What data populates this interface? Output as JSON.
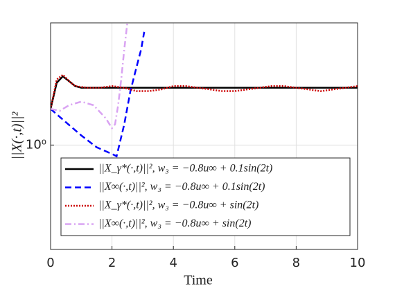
{
  "chart_data": {
    "type": "line",
    "xlabel": "Time",
    "ylabel": "||X(·,t)||²",
    "xlim": [
      0,
      10
    ],
    "xticks": [
      0,
      2,
      4,
      6,
      8,
      10
    ],
    "ylim": [
      0.62,
      1.75
    ],
    "yticks": [
      {
        "value": 1,
        "label": "10⁰"
      }
    ],
    "log_y": true,
    "grid": true,
    "legend": "lower right",
    "series": [
      {
        "name": "||X_γ*(·,t)||², w₃ = −0.8u∞ + 0.1sin(2t)",
        "color": "#000000",
        "dash": "solid",
        "x": [
          0,
          0.2,
          0.4,
          0.6,
          0.8,
          1,
          1.5,
          2,
          3,
          4,
          5,
          6,
          7,
          8,
          9,
          10
        ],
        "values": [
          1.18,
          1.33,
          1.37,
          1.34,
          1.31,
          1.3,
          1.3,
          1.3,
          1.3,
          1.3,
          1.3,
          1.3,
          1.3,
          1.3,
          1.3,
          1.3
        ]
      },
      {
        "name": "||X∞(·,t)||², w₃ = −0.8u∞ + 0.1sin(2t)",
        "color": "#0000ff",
        "dash": "dashed",
        "x": [
          0,
          0.5,
          1,
          1.5,
          2,
          2.15,
          2.4,
          2.6,
          2.8,
          2.95,
          3.05
        ],
        "values": [
          1.18,
          1.11,
          1.045,
          0.99,
          0.96,
          0.95,
          1.1,
          1.28,
          1.43,
          1.55,
          1.68
        ]
      },
      {
        "name": "||X_γ*(·,t)||², w₃ = −0.8u∞ + sin(2t)",
        "color": "#cc0000",
        "dash": "dotted",
        "x": [
          0,
          0.2,
          0.4,
          0.6,
          0.8,
          1.2,
          1.6,
          2,
          2.4,
          2.8,
          3.2,
          3.6,
          4,
          4.4,
          4.8,
          5.2,
          5.6,
          6,
          6.4,
          6.8,
          7.2,
          7.6,
          8,
          8.4,
          8.8,
          9.2,
          9.6,
          10
        ],
        "values": [
          1.18,
          1.35,
          1.38,
          1.34,
          1.31,
          1.3,
          1.3,
          1.31,
          1.3,
          1.28,
          1.28,
          1.29,
          1.31,
          1.31,
          1.3,
          1.29,
          1.28,
          1.28,
          1.29,
          1.3,
          1.31,
          1.31,
          1.3,
          1.29,
          1.28,
          1.29,
          1.3,
          1.31
        ]
      },
      {
        "name": "||X∞(·,t)||², w₃ = −0.8u∞ + sin(2t)",
        "color": "#d9a3f2",
        "dash": "dashdot",
        "x": [
          0,
          0.3,
          0.6,
          1,
          1.4,
          1.8,
          2,
          2.1,
          2.2,
          2.3,
          2.4,
          2.5
        ],
        "values": [
          1.18,
          1.17,
          1.2,
          1.22,
          1.2,
          1.13,
          1.08,
          1.1,
          1.2,
          1.35,
          1.55,
          1.75
        ]
      }
    ]
  }
}
